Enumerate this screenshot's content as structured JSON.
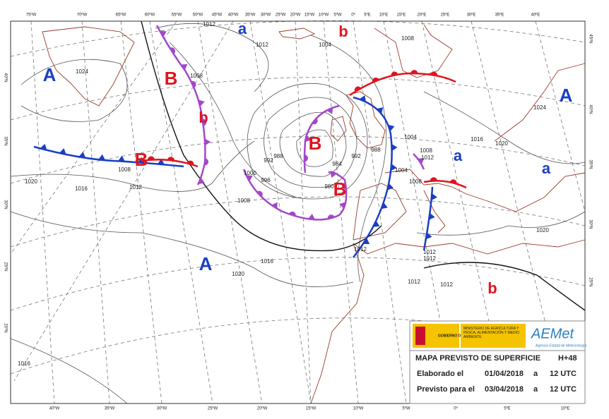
{
  "map": {
    "top_labels": [
      "75ºW",
      "70ºW",
      "65ºW",
      "60ºW",
      "55ºW",
      "50ºW",
      "45ºW",
      "40ºW",
      "35ºW",
      "30ºW",
      "25ºW",
      "20ºW",
      "15ºW",
      "10ºW",
      "5ºW",
      "0º",
      "5ºE",
      "10ºE",
      "15ºE",
      "20ºE",
      "25ºE",
      "30ºE",
      "35ºE",
      "40ºE"
    ],
    "bottom_labels": [
      "40ºW",
      "35ºW",
      "30ºW",
      "25ºW",
      "20ºW",
      "15ºW",
      "10ºW",
      "5ºW",
      "0º",
      "5ºE",
      "10ºE"
    ],
    "left_labels": [
      "40ºN",
      "35ºN",
      "30ºN",
      "25ºN",
      "20ºN"
    ],
    "right_labels": [
      "45ºN",
      "40ºN",
      "35ºN",
      "30ºN",
      "25ºN"
    ],
    "systems": [
      "A",
      "B",
      "b",
      "a",
      "b",
      "B",
      "B",
      "B",
      "A",
      "a",
      "A",
      "a",
      "b"
    ],
    "isobar_labels": [
      1024,
      1012,
      1012,
      1008,
      1004,
      1008,
      1004,
      1008,
      1016,
      1020,
      1024,
      1012,
      1008,
      1012,
      1016,
      1020,
      1000,
      996,
      992,
      988,
      984,
      980,
      992,
      988,
      1004,
      1008,
      1008,
      1012,
      1012,
      1012,
      1012,
      1012,
      1016,
      1020,
      1020,
      1016
    ]
  },
  "info": {
    "government": "GOBIERNO DE ESPAÑA",
    "ministry": "MINISTERIO DE AGRICULTURA Y PESCA, ALIMENTACIÓN Y MEDIO AMBIENTE",
    "logo": "AEMet",
    "agency": "Agencia Estatal de Meteorología",
    "title": "MAPA PREVISTO DE SUPERFICIE",
    "lead": "H+48",
    "rows": [
      [
        "Elaborado el",
        "01/04/2018",
        "a",
        "12 UTC"
      ],
      [
        "Previsto para el",
        "03/04/2018",
        "a",
        "12 UTC"
      ]
    ]
  }
}
